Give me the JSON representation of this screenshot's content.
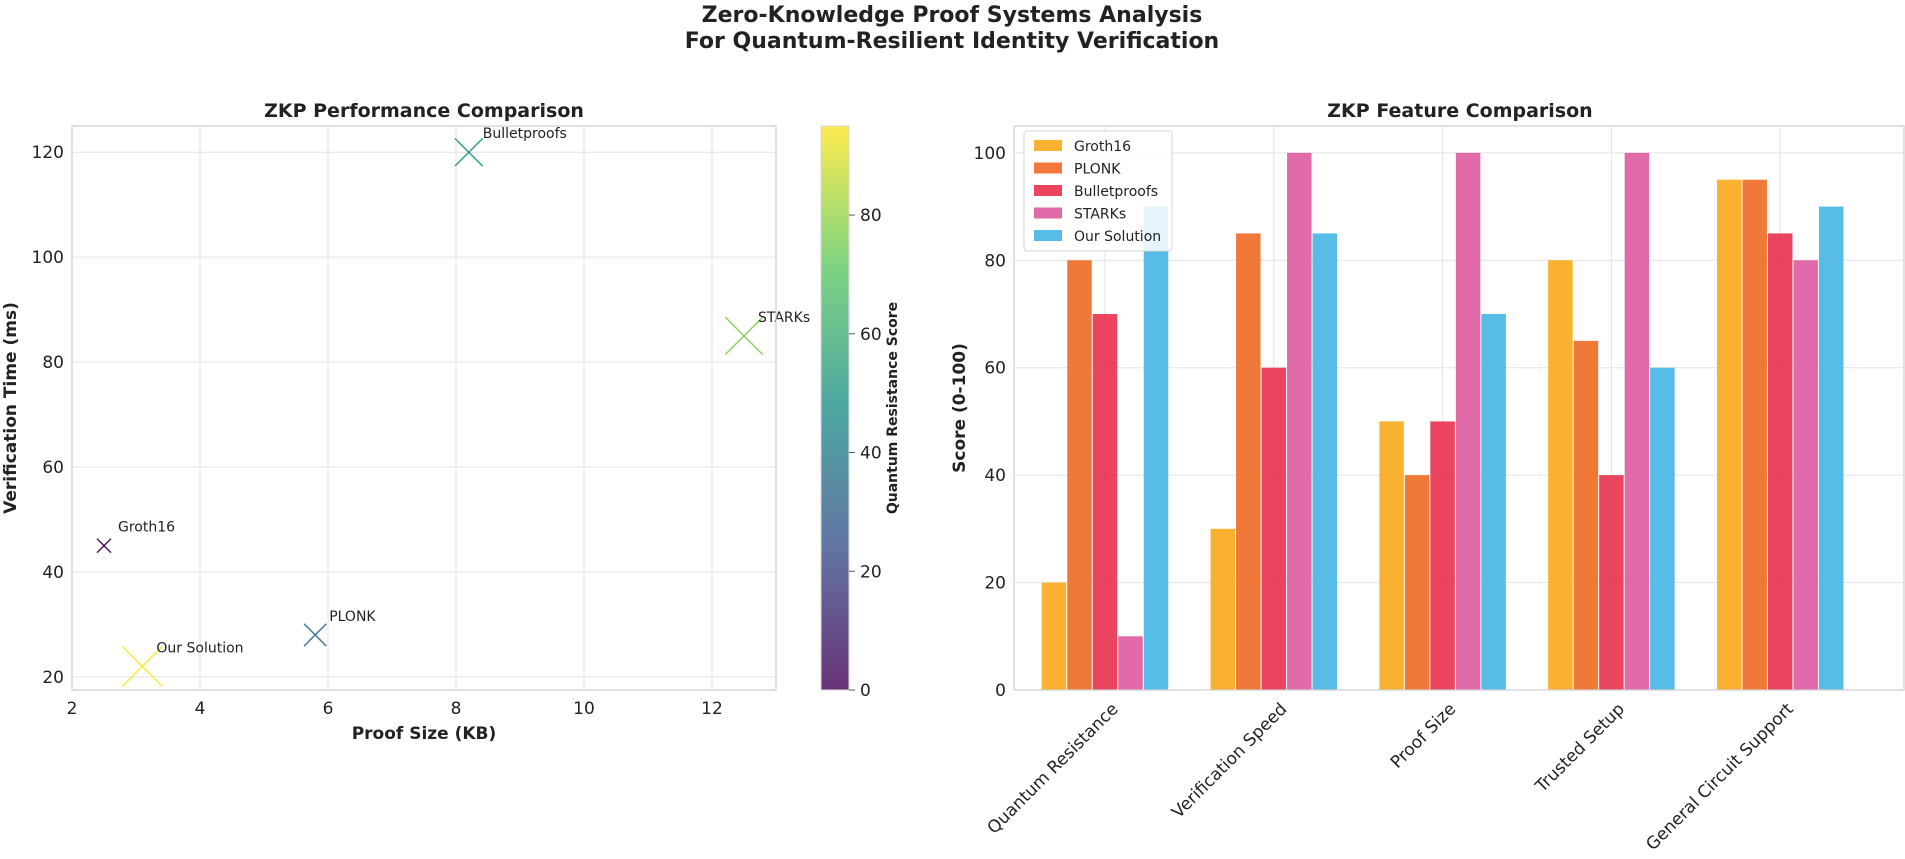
{
  "title": "Zero-Knowledge Proof Systems Analysis",
  "subtitle": "For Quantum-Resilient Identity Verification",
  "chart_data": [
    {
      "type": "scatter",
      "title": "ZKP Performance Comparison",
      "xlabel": "Proof Size (KB)",
      "ylabel": "Verification Time (ms)",
      "xlim": [
        2,
        13
      ],
      "ylim": [
        17.5,
        125
      ],
      "xticks": [
        2,
        4,
        6,
        8,
        10,
        12
      ],
      "yticks": [
        20,
        40,
        60,
        80,
        100,
        120
      ],
      "grid": true,
      "marker": "x",
      "colorbar": {
        "label": "Quantum Resistance Score",
        "range": [
          0,
          95
        ],
        "ticks": [
          0,
          20,
          40,
          60,
          80
        ],
        "colormap": "viridis"
      },
      "points": [
        {
          "name": "Groth16",
          "x": 2.5,
          "y": 45,
          "quantum_resistance": 0,
          "color": "#440154"
        },
        {
          "name": "PLONK",
          "x": 5.8,
          "y": 28,
          "quantum_resistance": 30,
          "color": "#31688e"
        },
        {
          "name": "Bulletproofs",
          "x": 8.2,
          "y": 120,
          "quantum_resistance": 50,
          "color": "#21918c"
        },
        {
          "name": "STARKs",
          "x": 12.5,
          "y": 85,
          "quantum_resistance": 85,
          "color": "#7ad151"
        },
        {
          "name": "Our Solution",
          "x": 3.1,
          "y": 22,
          "quantum_resistance": 95,
          "color": "#fde725"
        }
      ]
    },
    {
      "type": "bar",
      "title": "ZKP Feature Comparison",
      "xlabel": "",
      "ylabel": "Score (0-100)",
      "ylim": [
        0,
        105
      ],
      "yticks": [
        0,
        20,
        40,
        60,
        80,
        100
      ],
      "grid": true,
      "legend_position": "top-left",
      "categories": [
        "Quantum Resistance",
        "Verification Speed",
        "Proof Size",
        "Trusted Setup",
        "General Circuit Support"
      ],
      "series": [
        {
          "name": "Groth16",
          "color": "#f9a81a",
          "values": [
            20,
            30,
            50,
            80,
            95
          ]
        },
        {
          "name": "PLONK",
          "color": "#ee6a24",
          "values": [
            80,
            85,
            40,
            65,
            95
          ]
        },
        {
          "name": "Bulletproofs",
          "color": "#e8304e",
          "values": [
            70,
            60,
            50,
            40,
            85
          ]
        },
        {
          "name": "STARKs",
          "color": "#de5b9e",
          "values": [
            10,
            100,
            100,
            100,
            80
          ]
        },
        {
          "name": "Our Solution",
          "color": "#45b6e4",
          "values": [
            90,
            85,
            70,
            60,
            90
          ]
        }
      ]
    }
  ]
}
